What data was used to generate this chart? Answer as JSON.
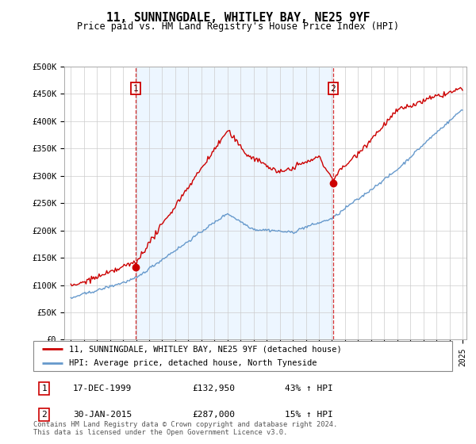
{
  "title": "11, SUNNINGDALE, WHITLEY BAY, NE25 9YF",
  "subtitle": "Price paid vs. HM Land Registry's House Price Index (HPI)",
  "ylim": [
    0,
    500000
  ],
  "yticks": [
    0,
    50000,
    100000,
    150000,
    200000,
    250000,
    300000,
    350000,
    400000,
    450000,
    500000
  ],
  "ytick_labels": [
    "£0",
    "£50K",
    "£100K",
    "£150K",
    "£200K",
    "£250K",
    "£300K",
    "£350K",
    "£400K",
    "£450K",
    "£500K"
  ],
  "red_color": "#cc0000",
  "blue_color": "#6699cc",
  "shade_color": "#ddeeff",
  "marker1_date": 1999.96,
  "marker1_price": 132950,
  "marker2_date": 2015.08,
  "marker2_price": 287000,
  "legend_label_red": "11, SUNNINGDALE, WHITLEY BAY, NE25 9YF (detached house)",
  "legend_label_blue": "HPI: Average price, detached house, North Tyneside",
  "table_row1": [
    "1",
    "17-DEC-1999",
    "£132,950",
    "43% ↑ HPI"
  ],
  "table_row2": [
    "2",
    "30-JAN-2015",
    "£287,000",
    "15% ↑ HPI"
  ],
  "footer": "Contains HM Land Registry data © Crown copyright and database right 2024.\nThis data is licensed under the Open Government Licence v3.0.",
  "vline1_date": 1999.96,
  "vline2_date": 2015.08,
  "xlim_left": 1994.5,
  "xlim_right": 2025.3
}
